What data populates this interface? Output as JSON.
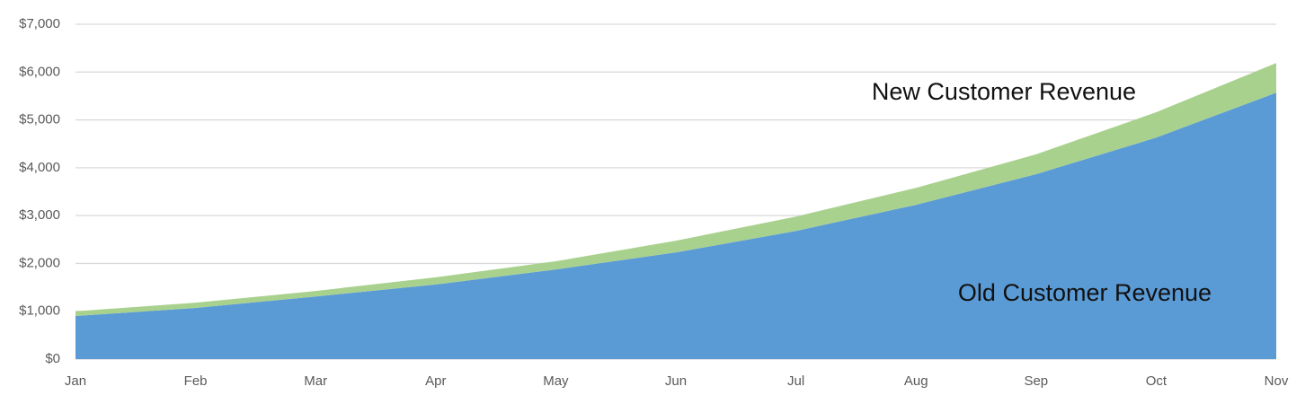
{
  "chart_data": {
    "type": "stacked_area",
    "categories": [
      "Jan",
      "Feb",
      "Mar",
      "Apr",
      "May",
      "Jun",
      "Jul",
      "Aug",
      "Sep",
      "Oct",
      "Nov"
    ],
    "series": [
      {
        "name": "Old Customer Revenue",
        "color": "#5b9bd5",
        "values": [
          900,
          1070,
          1310,
          1560,
          1875,
          2230,
          2680,
          3225,
          3865,
          4630,
          5570
        ]
      },
      {
        "name": "New Customer Revenue",
        "color": "#a9d18e",
        "values": [
          100,
          110,
          115,
          150,
          170,
          245,
          300,
          355,
          415,
          530,
          620
        ]
      }
    ],
    "ylim": [
      0,
      7000
    ],
    "yticks": [
      {
        "value": 0,
        "label": "$0"
      },
      {
        "value": 1000,
        "label": "$1,000"
      },
      {
        "value": 2000,
        "label": "$2,000"
      },
      {
        "value": 3000,
        "label": "$3,000"
      },
      {
        "value": 4000,
        "label": "$4,000"
      },
      {
        "value": 5000,
        "label": "$5,000"
      },
      {
        "value": 6000,
        "label": "$6,000"
      },
      {
        "value": 7000,
        "label": "$7,000"
      }
    ],
    "grid": true
  }
}
